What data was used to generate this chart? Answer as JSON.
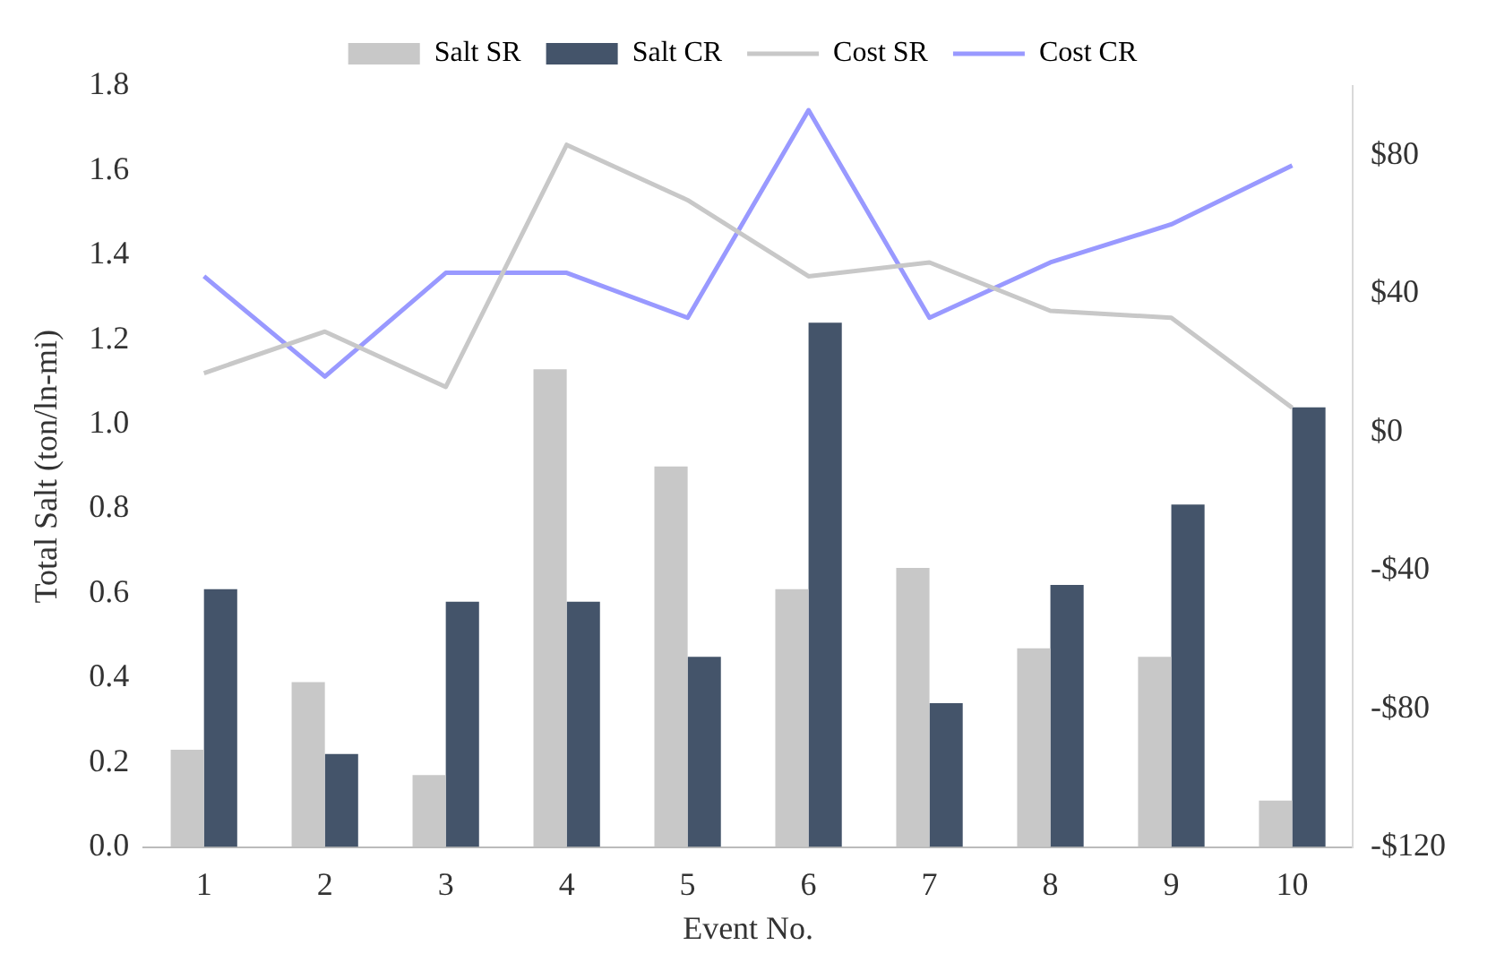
{
  "chart_data": {
    "type": "bar",
    "xlabel": "Event No.",
    "ylabel": "Total Salt (ton/ln-mi)",
    "categories": [
      "1",
      "2",
      "3",
      "4",
      "5",
      "6",
      "7",
      "8",
      "9",
      "10"
    ],
    "series": [
      {
        "name": "Salt SR",
        "color": "#c8c8c8",
        "values": [
          0.23,
          0.39,
          0.17,
          1.13,
          0.9,
          0.61,
          0.66,
          0.47,
          0.45,
          0.11
        ]
      },
      {
        "name": "Salt CR",
        "color": "#44546a",
        "values": [
          0.61,
          0.22,
          0.58,
          0.58,
          0.45,
          1.24,
          0.34,
          0.62,
          0.81,
          1.04
        ]
      },
      {
        "name": "Cost SR",
        "type": "line",
        "axis": "y2",
        "color": "#c8c8c8",
        "values": [
          17,
          29,
          13,
          83,
          67,
          45,
          49,
          35,
          33,
          7
        ]
      },
      {
        "name": "Cost CR",
        "type": "line",
        "axis": "y2",
        "color": "#9999ff",
        "values": [
          45,
          16,
          46,
          46,
          33,
          93,
          33,
          49,
          60,
          77
        ]
      }
    ],
    "ylim": [
      0,
      1.8
    ],
    "yticks": [
      {
        "value": 0,
        "label": "0.0"
      },
      {
        "value": 0.2,
        "label": "0.2"
      },
      {
        "value": 0.4,
        "label": "0.4"
      },
      {
        "value": 0.6,
        "label": "0.6"
      },
      {
        "value": 0.8,
        "label": "0.8"
      },
      {
        "value": 1,
        "label": "1.0"
      },
      {
        "value": 1.2,
        "label": "1.2"
      },
      {
        "value": 1.4,
        "label": "1.4"
      },
      {
        "value": 1.6,
        "label": "1.6"
      },
      {
        "value": 1.8,
        "label": "1.8"
      }
    ],
    "y2lim": [
      -120,
      100
    ],
    "y2ticks": [
      {
        "value": -120,
        "label": "-$120"
      },
      {
        "value": -80,
        "label": "-$80"
      },
      {
        "value": -40,
        "label": "-$40"
      },
      {
        "value": 0,
        "label": "$0"
      },
      {
        "value": 40,
        "label": "$40"
      },
      {
        "value": 80,
        "label": "$80"
      }
    ],
    "grid": false,
    "legend": "top",
    "marker": "none"
  }
}
